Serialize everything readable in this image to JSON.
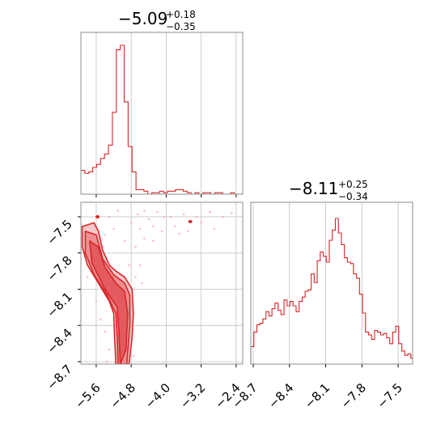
{
  "colors": {
    "line": "#d62728",
    "fill_light": "#f7c9ca",
    "fill_mid": "#ec8f91",
    "fill_dark": "#e35b5e",
    "points": "#f2a0a2"
  },
  "chart_data": [
    {
      "type": "histogram",
      "parameter": "p1",
      "title": {
        "value": "−5.09",
        "sup": "+0.18",
        "sub": "−0.35"
      },
      "xlim": [
        -5.95,
        -2.25
      ],
      "xticks": [
        -5.6,
        -4.8,
        -4.0,
        -3.2,
        -2.4
      ],
      "grid": true,
      "bins_x": [
        -5.95,
        -5.86,
        -5.77,
        -5.68,
        -5.59,
        -5.5,
        -5.41,
        -5.32,
        -5.23,
        -5.14,
        -5.05,
        -4.96,
        -4.87,
        -4.78,
        -4.69,
        -4.6,
        -4.51,
        -4.42,
        -4.33,
        -4.24,
        -4.15,
        -4.06,
        -3.97,
        -3.88,
        -3.79,
        -3.7,
        -3.61,
        -3.52,
        -3.43,
        -3.34,
        -3.25,
        -3.16,
        -3.07,
        -2.98,
        -2.89,
        -2.8,
        -2.71,
        -2.62,
        -2.53,
        -2.44,
        -2.35
      ],
      "counts": [
        0.16,
        0.14,
        0.15,
        0.18,
        0.2,
        0.24,
        0.27,
        0.33,
        0.55,
        0.97,
        1.0,
        0.62,
        0.32,
        0.15,
        0.03,
        0.03,
        0.02,
        0.0,
        0.01,
        0.01,
        0.02,
        0.01,
        0.02,
        0.02,
        0.03,
        0.03,
        0.02,
        0.01,
        0.0,
        0.01,
        0.0,
        0.01,
        0.01,
        0.0,
        0.01,
        0.01,
        0.0,
        0.0,
        0.01,
        0.0
      ]
    },
    {
      "type": "contour",
      "parameters": [
        "p1",
        "p2"
      ],
      "xlim": [
        -5.95,
        -2.25
      ],
      "ylim": [
        -8.72,
        -7.38
      ],
      "xticks": [
        -5.6,
        -4.8,
        -4.0,
        -3.2,
        -2.4
      ],
      "xtick_labels": [
        "−5.6",
        "−4.8",
        "−4.0",
        "−3.2",
        "−2.4"
      ],
      "yticks": [
        -7.5,
        -7.8,
        -8.1,
        -8.4,
        -8.7
      ],
      "ytick_labels": [
        "−7.5",
        "−7.8",
        "−8.1",
        "−8.4",
        "−8.7"
      ],
      "grid": true,
      "contour_levels": [
        [
          [
            -5.92,
            -7.58
          ],
          [
            -5.65,
            -7.55
          ],
          [
            -5.55,
            -7.62
          ],
          [
            -5.45,
            -7.78
          ],
          [
            -5.3,
            -7.9
          ],
          [
            -5.15,
            -7.95
          ],
          [
            -4.95,
            -8.0
          ],
          [
            -4.78,
            -8.1
          ],
          [
            -4.75,
            -8.3
          ],
          [
            -4.78,
            -8.5
          ],
          [
            -4.85,
            -8.72
          ],
          [
            -5.15,
            -8.72
          ],
          [
            -5.18,
            -8.5
          ],
          [
            -5.2,
            -8.3
          ],
          [
            -5.3,
            -8.2
          ],
          [
            -5.55,
            -8.05
          ],
          [
            -5.8,
            -7.9
          ],
          [
            -5.92,
            -7.75
          ]
        ],
        [
          [
            -5.85,
            -7.62
          ],
          [
            -5.6,
            -7.65
          ],
          [
            -5.45,
            -7.85
          ],
          [
            -5.2,
            -7.98
          ],
          [
            -4.95,
            -8.05
          ],
          [
            -4.83,
            -8.15
          ],
          [
            -4.83,
            -8.4
          ],
          [
            -4.9,
            -8.72
          ],
          [
            -5.1,
            -8.72
          ],
          [
            -5.12,
            -8.5
          ],
          [
            -5.15,
            -8.3
          ],
          [
            -5.35,
            -8.15
          ],
          [
            -5.65,
            -7.98
          ],
          [
            -5.85,
            -7.8
          ]
        ],
        [
          [
            -5.75,
            -7.7
          ],
          [
            -5.55,
            -7.75
          ],
          [
            -5.4,
            -7.92
          ],
          [
            -5.15,
            -8.05
          ],
          [
            -4.95,
            -8.12
          ],
          [
            -4.88,
            -8.3
          ],
          [
            -4.92,
            -8.6
          ],
          [
            -5.05,
            -8.72
          ],
          [
            -5.08,
            -8.45
          ],
          [
            -5.12,
            -8.25
          ],
          [
            -5.4,
            -8.1
          ],
          [
            -5.7,
            -7.88
          ]
        ]
      ],
      "islands": [
        [
          -3.45,
          -7.54
        ],
        [
          -5.57,
          -7.5
        ]
      ],
      "scatter_points": [
        [
          -4.5,
          -7.45
        ],
        [
          -4.2,
          -7.46
        ],
        [
          -3.9,
          -7.5
        ],
        [
          -3.6,
          -7.48
        ],
        [
          -3.3,
          -7.5
        ],
        [
          -3.0,
          -7.46
        ],
        [
          -2.7,
          -7.5
        ],
        [
          -2.5,
          -7.47
        ],
        [
          -4.8,
          -7.55
        ],
        [
          -4.6,
          -7.6
        ],
        [
          -4.4,
          -7.52
        ],
        [
          -4.1,
          -7.62
        ],
        [
          -3.8,
          -7.58
        ],
        [
          -3.7,
          -7.64
        ],
        [
          -5.3,
          -7.5
        ],
        [
          -5.1,
          -7.45
        ],
        [
          -4.95,
          -7.7
        ],
        [
          -4.7,
          -7.75
        ],
        [
          -4.5,
          -7.68
        ],
        [
          -5.4,
          -7.65
        ],
        [
          -5.2,
          -7.6
        ],
        [
          -4.85,
          -7.9
        ],
        [
          -4.6,
          -7.9
        ],
        [
          -4.7,
          -8.0
        ],
        [
          -4.55,
          -8.05
        ],
        [
          -4.9,
          -8.6
        ],
        [
          -5.3,
          -8.6
        ],
        [
          -5.4,
          -8.45
        ],
        [
          -4.75,
          -8.65
        ],
        [
          -3.2,
          -7.55
        ],
        [
          -2.9,
          -7.6
        ],
        [
          -3.5,
          -7.62
        ],
        [
          -4.3,
          -7.7
        ],
        [
          -4.05,
          -7.5
        ],
        [
          -5.6,
          -8.2
        ],
        [
          -5.8,
          -8.0
        ],
        [
          -5.5,
          -8.35
        ],
        [
          -5.35,
          -8.7
        ],
        [
          -4.65,
          -7.48
        ],
        [
          -4.3,
          -7.58
        ]
      ]
    },
    {
      "type": "histogram",
      "parameter": "p2",
      "title": {
        "value": "−8.11",
        "sup": "+0.25",
        "sub": "−0.34"
      },
      "xlim": [
        -8.72,
        -7.38
      ],
      "xticks": [
        -8.7,
        -8.4,
        -8.1,
        -7.8,
        -7.5
      ],
      "xtick_labels": [
        "−8.7",
        "−8.4",
        "−8.1",
        "−7.8",
        "−7.5"
      ],
      "grid": true,
      "bins_x": [
        -8.72,
        -8.695,
        -8.67,
        -8.645,
        -8.62,
        -8.595,
        -8.57,
        -8.545,
        -8.52,
        -8.495,
        -8.47,
        -8.445,
        -8.42,
        -8.395,
        -8.37,
        -8.345,
        -8.32,
        -8.295,
        -8.27,
        -8.245,
        -8.22,
        -8.195,
        -8.17,
        -8.145,
        -8.12,
        -8.095,
        -8.07,
        -8.045,
        -8.02,
        -7.995,
        -7.97,
        -7.945,
        -7.92,
        -7.895,
        -7.87,
        -7.845,
        -7.82,
        -7.795,
        -7.77,
        -7.745,
        -7.72,
        -7.695,
        -7.67,
        -7.645,
        -7.62,
        -7.595,
        -7.57,
        -7.545,
        -7.52,
        -7.495,
        -7.47,
        -7.445,
        -7.42,
        -7.395,
        -7.38
      ],
      "counts": [
        0.12,
        0.22,
        0.27,
        0.28,
        0.31,
        0.36,
        0.33,
        0.38,
        0.42,
        0.37,
        0.34,
        0.44,
        0.4,
        0.43,
        0.4,
        0.36,
        0.43,
        0.46,
        0.5,
        0.51,
        0.62,
        0.56,
        0.71,
        0.77,
        0.74,
        0.7,
        0.85,
        0.92,
        1.0,
        0.9,
        0.82,
        0.73,
        0.7,
        0.69,
        0.62,
        0.59,
        0.48,
        0.35,
        0.22,
        0.2,
        0.17,
        0.23,
        0.22,
        0.2,
        0.21,
        0.18,
        0.14,
        0.22,
        0.26,
        0.14,
        0.09,
        0.06,
        0.07,
        0.04
      ]
    }
  ],
  "titles": {
    "top": {
      "main": "−5.09",
      "sup": "+0.18",
      "sub": "−0.35"
    },
    "right": {
      "main": "−8.11",
      "sup": "+0.25",
      "sub": "−0.34"
    }
  }
}
